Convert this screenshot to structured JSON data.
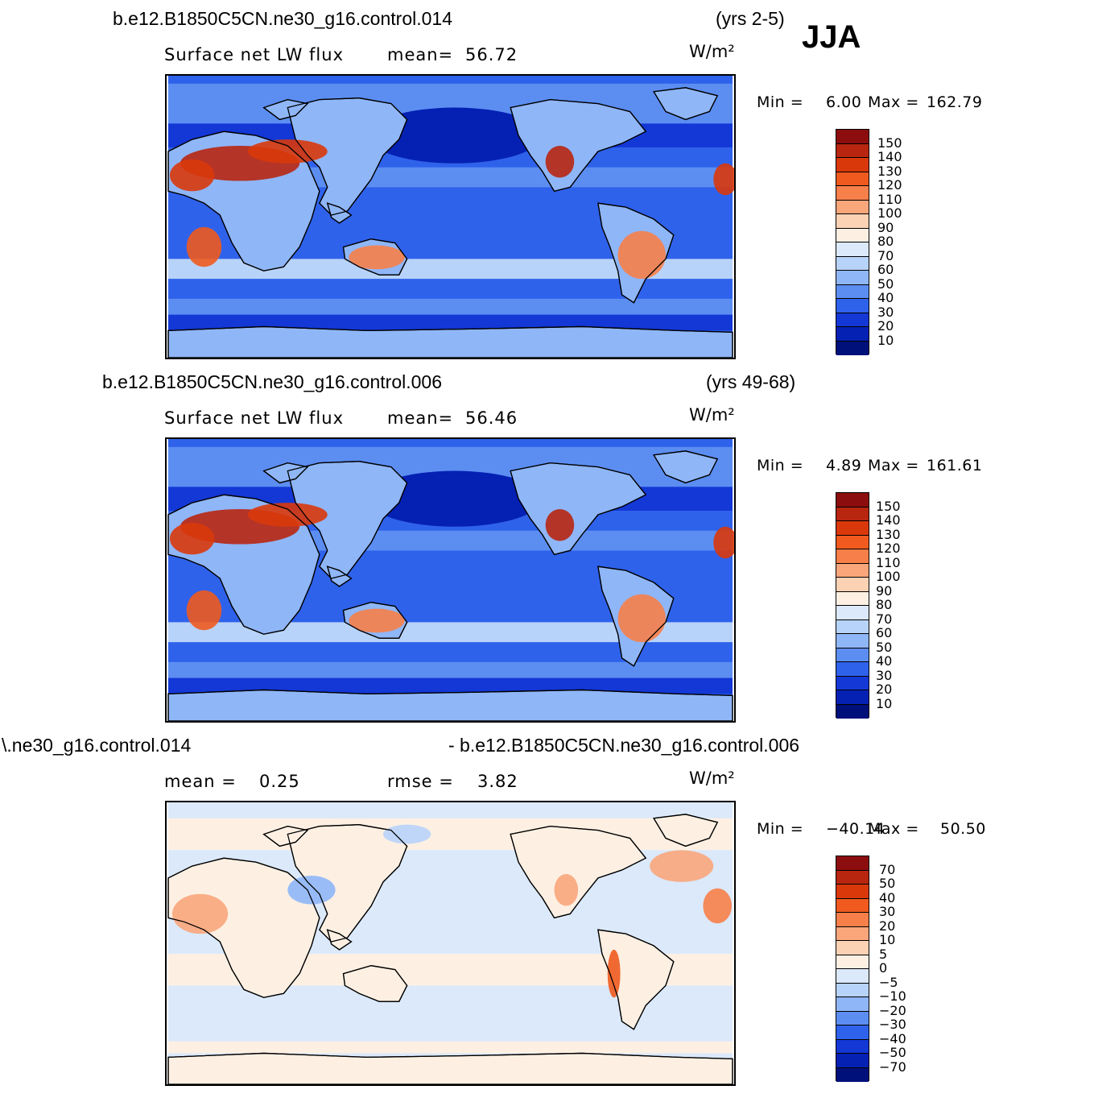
{
  "season": "JJA",
  "panels": [
    {
      "case": "b.e12.B1850C5CN.ne30_g16.control.014",
      "years": "(yrs 2-5)",
      "variable": "Surface net LW flux",
      "stat1_label": "mean=",
      "stat1_value": "56.72",
      "units": "W/m²",
      "min_label": "Min =",
      "min_value": "6.00",
      "max_label": "Max =",
      "max_value": "162.79",
      "colorbar_labels": [
        "150",
        "140",
        "130",
        "120",
        "110",
        "100",
        "90",
        "80",
        "70",
        "60",
        "50",
        "40",
        "30",
        "20",
        "10"
      ],
      "colorbar_colors": [
        "#8c0d0d",
        "#b8260f",
        "#d9380b",
        "#f05a1e",
        "#f77f49",
        "#f9a67b",
        "#fcd2b4",
        "#fdf0e3",
        "#dbe9fb",
        "#b8d3f9",
        "#8fb6f7",
        "#5c8ef2",
        "#2f62eb",
        "#1338d6",
        "#0521b3",
        "#00107a"
      ]
    },
    {
      "case": "b.e12.B1850C5CN.ne30_g16.control.006",
      "years": "(yrs 49-68)",
      "variable": "Surface net LW flux",
      "stat1_label": "mean=",
      "stat1_value": "56.46",
      "units": "W/m²",
      "min_label": "Min =",
      "min_value": "4.89",
      "max_label": "Max =",
      "max_value": "161.61",
      "colorbar_labels": [
        "150",
        "140",
        "130",
        "120",
        "110",
        "100",
        "90",
        "80",
        "70",
        "60",
        "50",
        "40",
        "30",
        "20",
        "10"
      ],
      "colorbar_colors": [
        "#8c0d0d",
        "#b8260f",
        "#d9380b",
        "#f05a1e",
        "#f77f49",
        "#f9a67b",
        "#fcd2b4",
        "#fdf0e3",
        "#dbe9fb",
        "#b8d3f9",
        "#8fb6f7",
        "#5c8ef2",
        "#2f62eb",
        "#1338d6",
        "#0521b3",
        "#00107a"
      ]
    },
    {
      "case_left": "\\.ne30_g16.control.014",
      "case_right": "- b.e12.B1850C5CN.ne30_g16.control.006",
      "stat1_label": "mean =",
      "stat1_value": "0.25",
      "stat2_label": "rmse =",
      "stat2_value": "3.82",
      "units": "W/m²",
      "min_label": "Min =",
      "min_value": "−40.14",
      "max_label": "Max =",
      "max_value": "50.50",
      "colorbar_labels": [
        "70",
        "50",
        "40",
        "30",
        "20",
        "10",
        "5",
        "0",
        "−5",
        "−10",
        "−20",
        "−30",
        "−40",
        "−50",
        "−70"
      ],
      "colorbar_colors": [
        "#8c0d0d",
        "#b8260f",
        "#d9380b",
        "#f05a1e",
        "#f77f49",
        "#f9a67b",
        "#fcd2b4",
        "#fdf0e3",
        "#dbe9fb",
        "#b8d3f9",
        "#8fb6f7",
        "#5c8ef2",
        "#2f62eb",
        "#1338d6",
        "#0521b3",
        "#00107a"
      ]
    }
  ]
}
